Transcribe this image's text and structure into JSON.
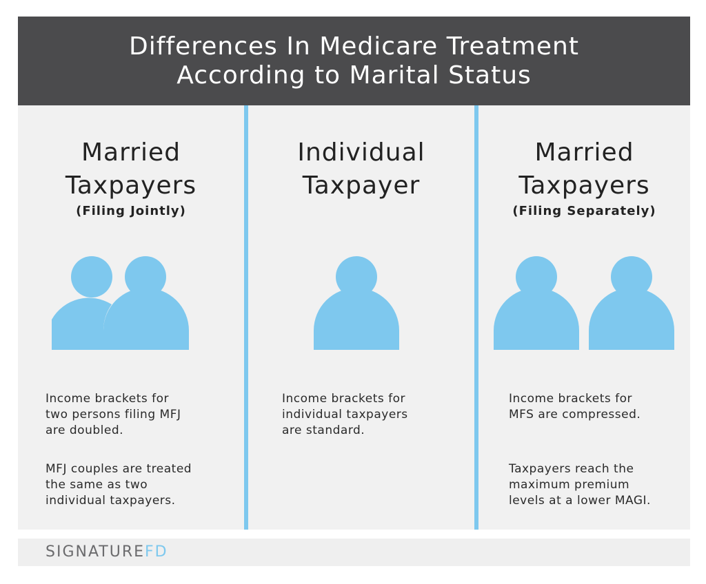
{
  "header": {
    "title_line1": "Differences In Medicare Treatment",
    "title_line2": "According to Marital Status"
  },
  "columns": [
    {
      "title_line1": "Married",
      "title_line2": "Taxpayers",
      "subtitle": "(Filing Jointly)",
      "icon": "two-persons-overlapping-icon",
      "para1": [
        "Income brackets for",
        "two persons filing MFJ",
        "are doubled."
      ],
      "para2": [
        "MFJ couples are treated",
        "the same as two",
        "individual taxpayers."
      ]
    },
    {
      "title_line1": "Individual",
      "title_line2": "Taxpayer",
      "icon": "single-person-icon",
      "para1": [
        "Income brackets for",
        "individual taxpayers",
        "are standard."
      ]
    },
    {
      "title_line1": "Married",
      "title_line2": "Taxpayers",
      "subtitle": "(Filing Separately)",
      "icon": "two-persons-separate-icon",
      "para1": [
        "Income brackets for",
        "MFS are compressed."
      ],
      "para2": [
        "Taxpayers reach the",
        "maximum premium",
        "levels at a lower MAGI."
      ]
    }
  ],
  "footer": {
    "logo_part1": "SIGNATURE",
    "logo_part2": "FD"
  },
  "colors": {
    "header_bg": "#4b4b4d",
    "panel_bg": "#f1f1f1",
    "accent_blue": "#7ec8ee"
  }
}
